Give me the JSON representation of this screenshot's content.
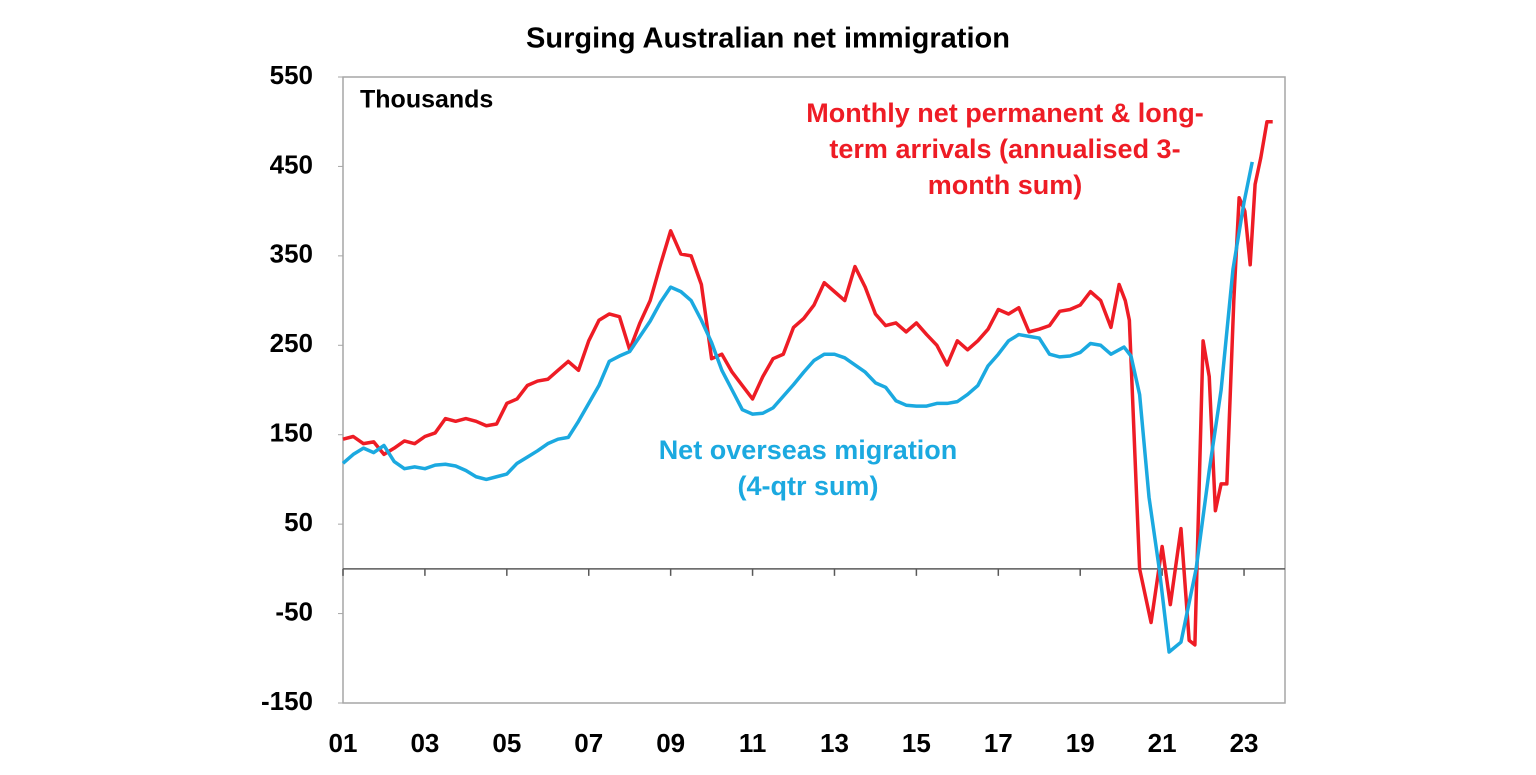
{
  "chart_data": {
    "type": "line",
    "title": "Surging Australian net immigration",
    "y_label": "Thousands",
    "xlim": [
      2001,
      2024
    ],
    "ylim": [
      -150,
      550
    ],
    "yticks": [
      550,
      450,
      350,
      250,
      150,
      50,
      -50,
      -150
    ],
    "xticks": [
      {
        "value": 2001,
        "label": "01"
      },
      {
        "value": 2003,
        "label": "03"
      },
      {
        "value": 2005,
        "label": "05"
      },
      {
        "value": 2007,
        "label": "07"
      },
      {
        "value": 2009,
        "label": "09"
      },
      {
        "value": 2011,
        "label": "11"
      },
      {
        "value": 2013,
        "label": "13"
      },
      {
        "value": 2015,
        "label": "15"
      },
      {
        "value": 2017,
        "label": "17"
      },
      {
        "value": 2019,
        "label": "19"
      },
      {
        "value": 2021,
        "label": "21"
      },
      {
        "value": 2023,
        "label": "23"
      }
    ],
    "series": [
      {
        "name": "Monthly net permanent & long-term arrivals (annualised 3-month sum)",
        "label_lines": [
          "Monthly net permanent & long-",
          "term arrivals (annualised 3-",
          "month sum)"
        ],
        "color": "#ee1c25",
        "x": [
          2001.0,
          2001.25,
          2001.5,
          2001.75,
          2002.0,
          2002.25,
          2002.5,
          2002.75,
          2003.0,
          2003.25,
          2003.5,
          2003.75,
          2004.0,
          2004.25,
          2004.5,
          2004.75,
          2005.0,
          2005.25,
          2005.5,
          2005.75,
          2006.0,
          2006.25,
          2006.5,
          2006.75,
          2007.0,
          2007.25,
          2007.5,
          2007.75,
          2008.0,
          2008.25,
          2008.5,
          2008.75,
          2009.0,
          2009.25,
          2009.5,
          2009.75,
          2010.0,
          2010.25,
          2010.5,
          2010.75,
          2011.0,
          2011.25,
          2011.5,
          2011.75,
          2012.0,
          2012.25,
          2012.5,
          2012.75,
          2013.0,
          2013.25,
          2013.5,
          2013.75,
          2014.0,
          2014.25,
          2014.5,
          2014.75,
          2015.0,
          2015.25,
          2015.5,
          2015.75,
          2016.0,
          2016.25,
          2016.5,
          2016.75,
          2017.0,
          2017.25,
          2017.5,
          2017.75,
          2018.0,
          2018.25,
          2018.5,
          2018.75,
          2019.0,
          2019.25,
          2019.5,
          2019.75,
          2019.95,
          2020.1,
          2020.2,
          2020.45,
          2020.73,
          2021.0,
          2021.2,
          2021.46,
          2021.66,
          2021.8,
          2022.0,
          2022.15,
          2022.3,
          2022.44,
          2022.58,
          2022.75,
          2022.88,
          2023.02,
          2023.15,
          2023.27,
          2023.41,
          2023.56,
          2023.7
        ],
        "values": [
          145,
          148,
          140,
          142,
          128,
          135,
          143,
          140,
          148,
          152,
          168,
          165,
          168,
          165,
          160,
          162,
          185,
          190,
          205,
          210,
          212,
          222,
          232,
          222,
          255,
          278,
          285,
          282,
          245,
          275,
          300,
          340,
          378,
          352,
          350,
          318,
          235,
          240,
          220,
          205,
          190,
          215,
          235,
          240,
          270,
          280,
          295,
          320,
          310,
          300,
          338,
          315,
          285,
          272,
          275,
          265,
          275,
          262,
          250,
          228,
          255,
          245,
          255,
          268,
          290,
          285,
          292,
          265,
          268,
          272,
          288,
          290,
          295,
          310,
          300,
          270,
          318,
          300,
          278,
          0,
          -60,
          25,
          -40,
          45,
          -80,
          -85,
          255,
          215,
          65,
          95,
          95,
          300,
          415,
          400,
          340,
          430,
          460,
          500,
          500
        ]
      },
      {
        "name": "Net overseas migration (4-qtr sum)",
        "label_lines": [
          "Net overseas migration",
          "(4-qtr sum)"
        ],
        "color": "#1ba9e0",
        "x": [
          2001.0,
          2001.25,
          2001.5,
          2001.75,
          2002.0,
          2002.25,
          2002.5,
          2002.75,
          2003.0,
          2003.25,
          2003.5,
          2003.75,
          2004.0,
          2004.25,
          2004.5,
          2004.75,
          2005.0,
          2005.25,
          2005.5,
          2005.75,
          2006.0,
          2006.25,
          2006.5,
          2006.75,
          2007.0,
          2007.25,
          2007.5,
          2007.75,
          2008.0,
          2008.25,
          2008.5,
          2008.75,
          2009.0,
          2009.25,
          2009.5,
          2009.75,
          2010.0,
          2010.25,
          2010.5,
          2010.75,
          2011.0,
          2011.25,
          2011.5,
          2011.75,
          2012.0,
          2012.25,
          2012.5,
          2012.75,
          2013.0,
          2013.25,
          2013.5,
          2013.75,
          2014.0,
          2014.25,
          2014.5,
          2014.75,
          2015.0,
          2015.25,
          2015.5,
          2015.75,
          2016.0,
          2016.25,
          2016.5,
          2016.75,
          2017.0,
          2017.25,
          2017.5,
          2017.75,
          2018.0,
          2018.25,
          2018.5,
          2018.75,
          2019.0,
          2019.25,
          2019.5,
          2019.75,
          2020.07,
          2020.24,
          2020.45,
          2020.68,
          2020.93,
          2021.17,
          2021.46,
          2021.83,
          2022.15,
          2022.44,
          2022.73,
          2023.0,
          2023.2
        ],
        "values": [
          118,
          128,
          135,
          130,
          138,
          120,
          112,
          114,
          112,
          116,
          117,
          115,
          110,
          103,
          100,
          103,
          106,
          118,
          125,
          132,
          140,
          145,
          147,
          165,
          185,
          205,
          232,
          238,
          243,
          260,
          277,
          298,
          315,
          310,
          300,
          278,
          253,
          222,
          200,
          178,
          173,
          174,
          180,
          193,
          206,
          220,
          233,
          240,
          240,
          236,
          228,
          220,
          208,
          203,
          188,
          183,
          182,
          182,
          185,
          185,
          187,
          195,
          205,
          227,
          240,
          255,
          262,
          260,
          258,
          240,
          237,
          238,
          242,
          252,
          250,
          240,
          248,
          238,
          195,
          80,
          0,
          -93,
          -82,
          0,
          110,
          200,
          335,
          410,
          455
        ]
      }
    ]
  }
}
